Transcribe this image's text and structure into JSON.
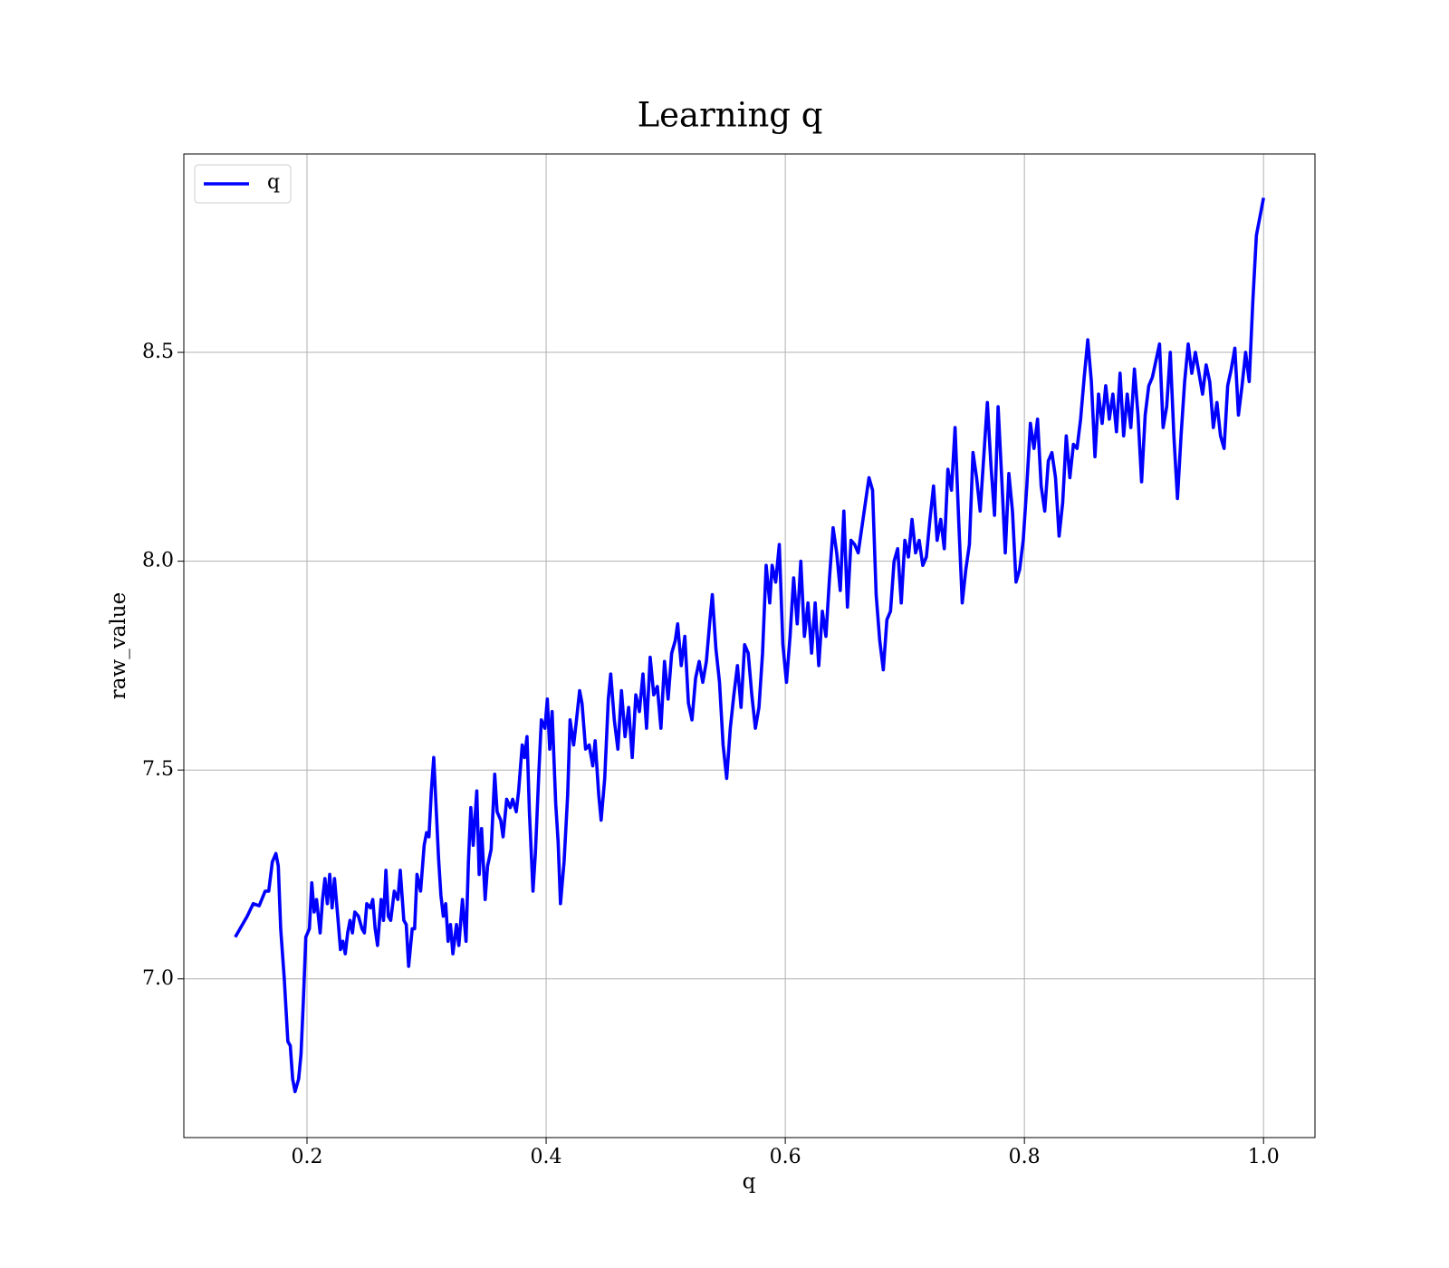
{
  "chart_data": {
    "type": "line",
    "title": "Learning q",
    "xlabel": "q",
    "ylabel": "raw_value",
    "x": [
      0.14,
      0.15,
      0.155,
      0.16,
      0.165,
      0.168,
      0.171,
      0.174,
      0.176,
      0.178,
      0.181,
      0.184,
      0.186,
      0.188,
      0.19,
      0.193,
      0.195,
      0.197,
      0.199,
      0.202,
      0.204,
      0.206,
      0.208,
      0.211,
      0.213,
      0.215,
      0.217,
      0.219,
      0.221,
      0.223,
      0.226,
      0.228,
      0.23,
      0.232,
      0.234,
      0.236,
      0.238,
      0.24,
      0.243,
      0.246,
      0.248,
      0.25,
      0.253,
      0.255,
      0.257,
      0.259,
      0.262,
      0.264,
      0.266,
      0.268,
      0.27,
      0.273,
      0.276,
      0.278,
      0.281,
      0.283,
      0.285,
      0.288,
      0.29,
      0.292,
      0.295,
      0.298,
      0.3,
      0.302,
      0.304,
      0.306,
      0.308,
      0.31,
      0.312,
      0.314,
      0.316,
      0.318,
      0.32,
      0.322,
      0.325,
      0.327,
      0.33,
      0.333,
      0.335,
      0.337,
      0.339,
      0.342,
      0.344,
      0.346,
      0.349,
      0.351,
      0.354,
      0.357,
      0.359,
      0.362,
      0.364,
      0.367,
      0.37,
      0.372,
      0.375,
      0.377,
      0.38,
      0.382,
      0.384,
      0.386,
      0.389,
      0.391,
      0.394,
      0.396,
      0.399,
      0.401,
      0.403,
      0.405,
      0.408,
      0.41,
      0.412,
      0.415,
      0.418,
      0.42,
      0.423,
      0.425,
      0.428,
      0.43,
      0.433,
      0.436,
      0.439,
      0.441,
      0.444,
      0.446,
      0.449,
      0.452,
      0.454,
      0.457,
      0.46,
      0.463,
      0.466,
      0.469,
      0.472,
      0.475,
      0.478,
      0.481,
      0.484,
      0.487,
      0.49,
      0.493,
      0.496,
      0.499,
      0.502,
      0.505,
      0.508,
      0.51,
      0.513,
      0.516,
      0.519,
      0.522,
      0.525,
      0.528,
      0.531,
      0.534,
      0.537,
      0.539,
      0.542,
      0.545,
      0.548,
      0.551,
      0.554,
      0.557,
      0.56,
      0.563,
      0.566,
      0.569,
      0.572,
      0.575,
      0.578,
      0.581,
      0.584,
      0.587,
      0.589,
      0.592,
      0.595,
      0.598,
      0.601,
      0.604,
      0.607,
      0.61,
      0.613,
      0.616,
      0.619,
      0.622,
      0.625,
      0.628,
      0.631,
      0.634,
      0.637,
      0.64,
      0.643,
      0.646,
      0.649,
      0.652,
      0.655,
      0.658,
      0.661,
      0.664,
      0.667,
      0.67,
      0.673,
      0.676,
      0.679,
      0.682,
      0.685,
      0.688,
      0.691,
      0.694,
      0.697,
      0.7,
      0.703,
      0.706,
      0.709,
      0.712,
      0.715,
      0.718,
      0.721,
      0.724,
      0.727,
      0.73,
      0.733,
      0.736,
      0.739,
      0.742,
      0.745,
      0.748,
      0.751,
      0.754,
      0.757,
      0.76,
      0.763,
      0.766,
      0.769,
      0.772,
      0.775,
      0.778,
      0.781,
      0.784,
      0.787,
      0.79,
      0.793,
      0.796,
      0.799,
      0.802,
      0.805,
      0.808,
      0.811,
      0.814,
      0.817,
      0.82,
      0.823,
      0.826,
      0.829,
      0.832,
      0.835,
      0.838,
      0.841,
      0.844,
      0.847,
      0.85,
      0.853,
      0.856,
      0.859,
      0.862,
      0.865,
      0.868,
      0.871,
      0.874,
      0.877,
      0.88,
      0.883,
      0.886,
      0.889,
      0.892,
      0.895,
      0.898,
      0.901,
      0.904,
      0.907,
      0.91,
      0.913,
      0.916,
      0.919,
      0.922,
      0.925,
      0.928,
      0.931,
      0.934,
      0.937,
      0.94,
      0.943,
      0.946,
      0.949,
      0.952,
      0.955,
      0.958,
      0.961,
      0.964,
      0.967,
      0.97,
      0.973,
      0.976,
      0.979,
      0.982,
      0.985,
      0.988,
      0.991,
      0.994,
      1.0
    ],
    "series": [
      {
        "name": "q",
        "color": "#0000ff",
        "values": [
          7.1,
          7.15,
          7.18,
          7.175,
          7.21,
          7.21,
          7.28,
          7.3,
          7.27,
          7.12,
          7.0,
          6.85,
          6.84,
          6.76,
          6.73,
          6.76,
          6.82,
          6.95,
          7.1,
          7.12,
          7.23,
          7.16,
          7.19,
          7.11,
          7.19,
          7.24,
          7.18,
          7.25,
          7.17,
          7.24,
          7.14,
          7.07,
          7.09,
          7.06,
          7.11,
          7.14,
          7.11,
          7.16,
          7.15,
          7.12,
          7.11,
          7.18,
          7.17,
          7.19,
          7.12,
          7.08,
          7.19,
          7.14,
          7.26,
          7.15,
          7.14,
          7.21,
          7.19,
          7.26,
          7.14,
          7.13,
          7.03,
          7.12,
          7.12,
          7.25,
          7.21,
          7.32,
          7.35,
          7.34,
          7.45,
          7.53,
          7.41,
          7.29,
          7.2,
          7.15,
          7.18,
          7.09,
          7.13,
          7.06,
          7.13,
          7.08,
          7.19,
          7.09,
          7.28,
          7.41,
          7.32,
          7.45,
          7.25,
          7.36,
          7.19,
          7.27,
          7.31,
          7.49,
          7.4,
          7.38,
          7.34,
          7.43,
          7.41,
          7.43,
          7.4,
          7.45,
          7.56,
          7.53,
          7.58,
          7.4,
          7.21,
          7.3,
          7.5,
          7.62,
          7.6,
          7.67,
          7.55,
          7.64,
          7.42,
          7.33,
          7.18,
          7.28,
          7.44,
          7.62,
          7.56,
          7.61,
          7.69,
          7.66,
          7.55,
          7.56,
          7.51,
          7.57,
          7.44,
          7.38,
          7.48,
          7.67,
          7.73,
          7.62,
          7.55,
          7.69,
          7.58,
          7.65,
          7.53,
          7.68,
          7.64,
          7.73,
          7.6,
          7.77,
          7.68,
          7.7,
          7.6,
          7.76,
          7.67,
          7.78,
          7.81,
          7.85,
          7.75,
          7.82,
          7.66,
          7.62,
          7.72,
          7.76,
          7.71,
          7.76,
          7.86,
          7.92,
          7.79,
          7.71,
          7.56,
          7.48,
          7.6,
          7.68,
          7.75,
          7.65,
          7.8,
          7.78,
          7.68,
          7.6,
          7.65,
          7.78,
          7.99,
          7.9,
          7.99,
          7.95,
          8.04,
          7.8,
          7.71,
          7.82,
          7.96,
          7.85,
          8.0,
          7.82,
          7.9,
          7.78,
          7.9,
          7.75,
          7.88,
          7.82,
          7.96,
          8.08,
          8.02,
          7.93,
          8.12,
          7.89,
          8.05,
          8.04,
          8.02,
          8.08,
          8.14,
          8.2,
          8.17,
          7.92,
          7.81,
          7.74,
          7.86,
          7.88,
          8.0,
          8.03,
          7.9,
          8.05,
          8.01,
          8.1,
          8.02,
          8.05,
          7.99,
          8.01,
          8.1,
          8.18,
          8.05,
          8.1,
          8.03,
          8.22,
          8.17,
          8.32,
          8.1,
          7.9,
          7.98,
          8.04,
          8.26,
          8.2,
          8.12,
          8.25,
          8.38,
          8.23,
          8.11,
          8.37,
          8.2,
          8.02,
          8.21,
          8.12,
          7.95,
          7.98,
          8.05,
          8.18,
          8.33,
          8.27,
          8.34,
          8.18,
          8.12,
          8.24,
          8.26,
          8.2,
          8.06,
          8.14,
          8.3,
          8.2,
          8.28,
          8.27,
          8.34,
          8.44,
          8.53,
          8.43,
          8.25,
          8.4,
          8.33,
          8.42,
          8.34,
          8.4,
          8.31,
          8.45,
          8.3,
          8.4,
          8.32,
          8.46,
          8.35,
          8.19,
          8.35,
          8.42,
          8.44,
          8.48,
          8.52,
          8.32,
          8.37,
          8.5,
          8.3,
          8.15,
          8.3,
          8.43,
          8.52,
          8.45,
          8.5,
          8.45,
          8.4,
          8.47,
          8.43,
          8.32,
          8.38,
          8.3,
          8.27,
          8.42,
          8.46,
          8.51,
          8.35,
          8.42,
          8.5,
          8.43,
          8.62,
          8.78,
          8.87
        ]
      }
    ],
    "xlim": [
      0.097,
      1.043
    ],
    "ylim": [
      6.62,
      8.975
    ],
    "xticks": [
      0.2,
      0.4,
      0.6,
      0.8,
      {
        "value": 1,
        "label": "1.0"
      }
    ],
    "yticks": [
      {
        "value": 7,
        "label": "7.0"
      },
      7.5,
      {
        "value": 8,
        "label": "8.0"
      },
      8.5
    ],
    "grid": true,
    "legend": "upper left"
  }
}
